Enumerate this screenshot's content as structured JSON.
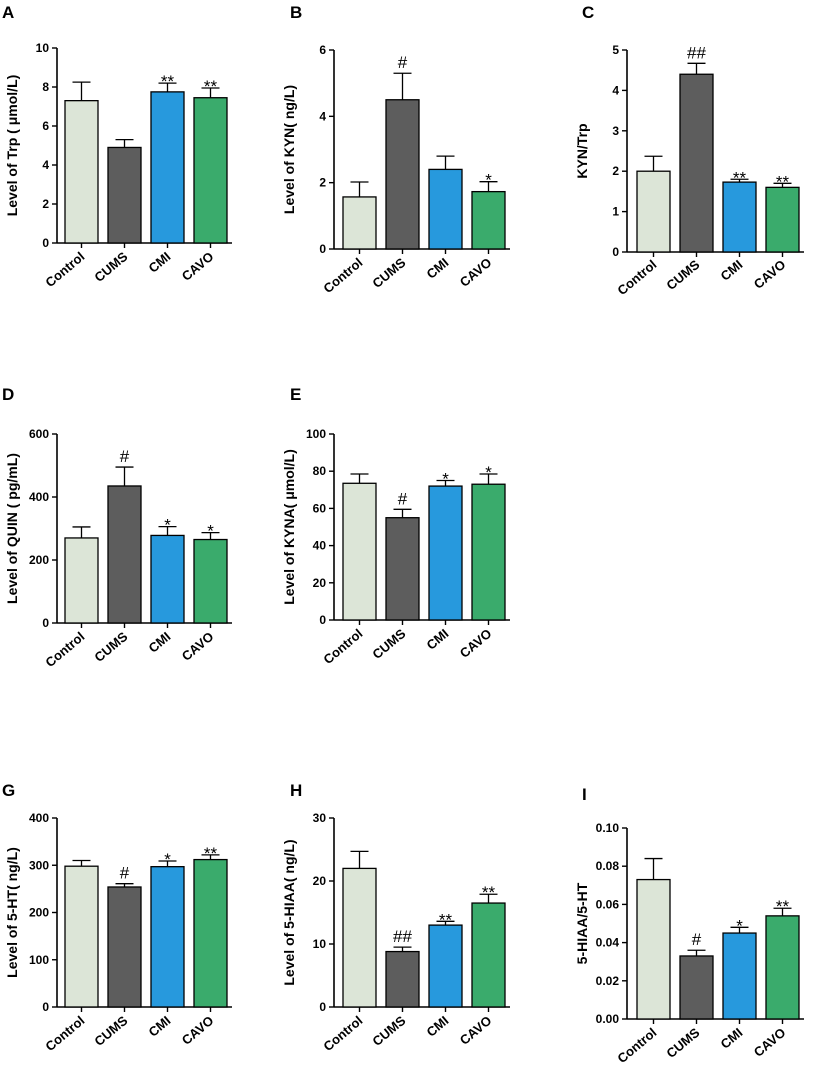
{
  "colors": {
    "Control": "#dce5d7",
    "CUMS": "#5d5d5d",
    "CMI": "#2799dd",
    "CAVO": "#3aab6c"
  },
  "chart_data": [
    {
      "panel": "A",
      "type": "bar",
      "ylabel": "Level of Trp ( μmol/L)",
      "categories": [
        "Control",
        "CUMS",
        "CMI",
        "CAVO"
      ],
      "values": [
        7.3,
        4.9,
        7.75,
        7.45
      ],
      "errors": [
        0.95,
        0.4,
        0.45,
        0.5
      ],
      "annotations": [
        "",
        "",
        "**",
        "**"
      ],
      "ylim": [
        0,
        10
      ],
      "ticks": [
        0,
        2,
        4,
        6,
        8,
        10
      ],
      "tick_labels": [
        "0",
        "2",
        "4",
        "6",
        "8",
        "10"
      ]
    },
    {
      "panel": "B",
      "type": "bar",
      "ylabel": "Level of KYN( ng/L)",
      "categories": [
        "Control",
        "CUMS",
        "CMI",
        "CAVO"
      ],
      "values": [
        1.57,
        4.5,
        2.4,
        1.73
      ],
      "errors": [
        0.45,
        0.8,
        0.4,
        0.3
      ],
      "annotations": [
        "",
        "#",
        "",
        "*"
      ],
      "ylim": [
        0,
        6
      ],
      "ticks": [
        0,
        2,
        4,
        6
      ],
      "tick_labels": [
        "0",
        "2",
        "4",
        "6"
      ]
    },
    {
      "panel": "C",
      "type": "bar",
      "ylabel": "KYN/Trp",
      "categories": [
        "Control",
        "CUMS",
        "CMI",
        "CAVO"
      ],
      "values": [
        2.0,
        4.4,
        1.73,
        1.6
      ],
      "errors": [
        0.37,
        0.27,
        0.07,
        0.1
      ],
      "annotations": [
        "",
        "##",
        "**",
        "**"
      ],
      "ylim": [
        0,
        5
      ],
      "ticks": [
        0,
        1,
        2,
        3,
        4,
        5
      ],
      "tick_labels": [
        "0",
        "1",
        "2",
        "3",
        "4",
        "5"
      ]
    },
    {
      "panel": "D",
      "type": "bar",
      "ylabel": "Level of QUIN ( pg/mL)",
      "categories": [
        "Control",
        "CUMS",
        "CMI",
        "CAVO"
      ],
      "values": [
        270,
        435,
        278,
        265
      ],
      "errors": [
        35,
        60,
        28,
        22
      ],
      "annotations": [
        "",
        "#",
        "*",
        "*"
      ],
      "ylim": [
        0,
        600
      ],
      "ticks": [
        0,
        200,
        400,
        600
      ],
      "tick_labels": [
        "0",
        "200",
        "400",
        "600"
      ]
    },
    {
      "panel": "E",
      "type": "bar",
      "ylabel": "Level of KYNA( μmol/L)",
      "categories": [
        "Control",
        "CUMS",
        "CMI",
        "CAVO"
      ],
      "values": [
        73.5,
        55,
        72,
        73
      ],
      "errors": [
        5,
        4.5,
        3,
        5.5
      ],
      "annotations": [
        "",
        "#",
        "*",
        "*"
      ],
      "ylim": [
        0,
        100
      ],
      "ticks": [
        0,
        20,
        40,
        60,
        80,
        100
      ],
      "tick_labels": [
        "0",
        "20",
        "40",
        "60",
        "80",
        "100"
      ]
    },
    {
      "panel": "G",
      "type": "bar",
      "ylabel": "Level of 5-HT( ng/L)",
      "categories": [
        "Control",
        "CUMS",
        "CMI",
        "CAVO"
      ],
      "values": [
        298,
        254,
        297,
        312
      ],
      "errors": [
        12,
        7,
        12,
        10
      ],
      "annotations": [
        "",
        "#",
        "*",
        "**"
      ],
      "ylim": [
        0,
        400
      ],
      "ticks": [
        0,
        100,
        200,
        300,
        400
      ],
      "tick_labels": [
        "0",
        "100",
        "200",
        "300",
        "400"
      ]
    },
    {
      "panel": "H",
      "type": "bar",
      "ylabel": "Level of 5-HIAA( ng/L)",
      "categories": [
        "Control",
        "CUMS",
        "CMI",
        "CAVO"
      ],
      "values": [
        22,
        8.8,
        13,
        16.5
      ],
      "errors": [
        2.7,
        0.7,
        0.6,
        1.4
      ],
      "annotations": [
        "",
        "##",
        "**",
        "**"
      ],
      "ylim": [
        0,
        30
      ],
      "ticks": [
        0,
        10,
        20,
        30
      ],
      "tick_labels": [
        "0",
        "10",
        "20",
        "30"
      ]
    },
    {
      "panel": "I",
      "type": "bar",
      "ylabel": "5-HIAA/5-HT",
      "categories": [
        "Control",
        "CUMS",
        "CMI",
        "CAVO"
      ],
      "values": [
        0.073,
        0.033,
        0.045,
        0.054
      ],
      "errors": [
        0.011,
        0.003,
        0.003,
        0.004
      ],
      "annotations": [
        "",
        "#",
        "*",
        "**"
      ],
      "ylim": [
        0,
        0.1
      ],
      "ticks": [
        0,
        0.02,
        0.04,
        0.06,
        0.08,
        0.1
      ],
      "tick_labels": [
        "0.00",
        "0.02",
        "0.04",
        "0.06",
        "0.08",
        "0.10"
      ]
    }
  ]
}
